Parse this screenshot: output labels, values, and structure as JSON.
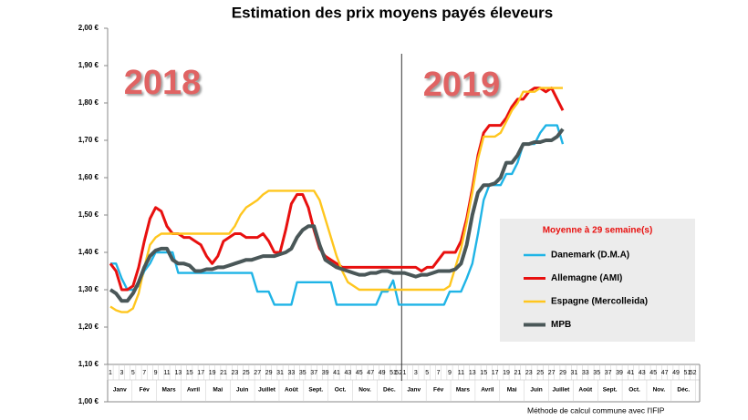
{
  "chart_data": {
    "type": "line",
    "title": "Estimation des prix moyens payés éleveurs",
    "annotations": [
      "2018",
      "2019"
    ],
    "legend_title": "Moyenne à  29 semaine(s)",
    "legend_position": "lower right",
    "footnote": "Méthode de calcul commune avec l'IFIP",
    "month_labels": [
      "Janv",
      "Fév",
      "Mars",
      "Avril",
      "Mai",
      "Juin",
      "Juillet",
      "Août",
      "Sept.",
      "Oct.",
      "Nov.",
      "Déc.",
      "Janv",
      "Fév",
      "Mars",
      "Avril",
      "Mai",
      "Juin",
      "Juillet",
      "Août",
      "Sept.",
      "Oct.",
      "Nov.",
      "Déc."
    ],
    "categories": [
      "1",
      null,
      "3",
      null,
      "5",
      null,
      "7",
      null,
      "9",
      null,
      "11",
      null,
      "13",
      null,
      "15",
      null,
      "17",
      null,
      "19",
      null,
      "21",
      null,
      "23",
      null,
      "25",
      null,
      "27",
      null,
      "29",
      null,
      "31",
      null,
      "33",
      null,
      "35",
      null,
      "37",
      null,
      "39",
      null,
      "41",
      null,
      "43",
      null,
      "45",
      null,
      "47",
      null,
      "49",
      null,
      "51",
      "52",
      "1",
      null,
      "3",
      null,
      "5",
      null,
      "7",
      null,
      "9",
      null,
      "11",
      null,
      "13",
      null,
      "15",
      null,
      "17",
      null,
      "19",
      null,
      "21",
      null,
      "23",
      null,
      "25",
      null,
      "27",
      null,
      "29",
      null,
      "31",
      null,
      "33",
      null,
      "35",
      null,
      "37",
      null,
      "39",
      null,
      "41",
      null,
      "43",
      null,
      "45",
      null,
      "47",
      null,
      "49",
      null,
      "51",
      "52"
    ],
    "ylim": [
      1.0,
      2.0
    ],
    "yticks": [
      {
        "value": 1.0,
        "label": "1,00 €"
      },
      {
        "value": 1.1,
        "label": "1,10 €"
      },
      {
        "value": 1.2,
        "label": "1,20 €"
      },
      {
        "value": 1.3,
        "label": "1,30 €"
      },
      {
        "value": 1.4,
        "label": "1,40 €"
      },
      {
        "value": 1.5,
        "label": "1,50 €"
      },
      {
        "value": 1.6,
        "label": "1,60 €"
      },
      {
        "value": 1.7,
        "label": "1,70 €"
      },
      {
        "value": 1.8,
        "label": "1,80 €"
      },
      {
        "value": 1.9,
        "label": "1,90 €"
      },
      {
        "value": 2.0,
        "label": "2,00 €"
      }
    ],
    "grid": false,
    "series": [
      {
        "name": "Danemark (D.M.A)",
        "color": "#1fb4e6",
        "values": [
          1.37,
          1.37,
          1.33,
          1.3,
          1.3,
          1.31,
          1.35,
          1.37,
          1.4,
          1.4,
          1.4,
          1.4,
          1.345,
          1.345,
          1.345,
          1.345,
          1.345,
          1.345,
          1.345,
          1.345,
          1.345,
          1.345,
          1.345,
          1.345,
          1.345,
          1.345,
          1.295,
          1.295,
          1.295,
          1.26,
          1.26,
          1.26,
          1.26,
          1.32,
          1.32,
          1.32,
          1.32,
          1.32,
          1.32,
          1.32,
          1.26,
          1.26,
          1.26,
          1.26,
          1.26,
          1.26,
          1.26,
          1.26,
          1.295,
          1.295,
          1.325,
          1.26,
          1.26,
          1.26,
          1.26,
          1.26,
          1.26,
          1.26,
          1.26,
          1.26,
          1.295,
          1.295,
          1.295,
          1.33,
          1.37,
          1.45,
          1.54,
          1.58,
          1.58,
          1.58,
          1.61,
          1.61,
          1.64,
          1.69,
          1.69,
          1.69,
          1.72,
          1.74,
          1.74,
          1.74,
          1.69,
          null,
          null,
          null,
          null,
          null,
          null,
          null,
          null,
          null,
          null,
          null,
          null,
          null,
          null,
          null,
          null,
          null,
          null,
          null,
          null,
          null,
          null,
          null
        ]
      },
      {
        "name": "Allemagne (AMI)",
        "color": "#e8100f",
        "values": [
          1.37,
          1.35,
          1.3,
          1.3,
          1.31,
          1.36,
          1.43,
          1.49,
          1.52,
          1.51,
          1.47,
          1.45,
          1.45,
          1.44,
          1.44,
          1.43,
          1.42,
          1.39,
          1.37,
          1.39,
          1.43,
          1.44,
          1.45,
          1.45,
          1.44,
          1.44,
          1.44,
          1.45,
          1.43,
          1.4,
          1.4,
          1.46,
          1.53,
          1.555,
          1.555,
          1.52,
          1.46,
          1.41,
          1.39,
          1.38,
          1.37,
          1.36,
          1.36,
          1.36,
          1.36,
          1.36,
          1.36,
          1.36,
          1.36,
          1.36,
          1.36,
          1.36,
          1.36,
          1.36,
          1.36,
          1.35,
          1.36,
          1.36,
          1.38,
          1.4,
          1.4,
          1.4,
          1.43,
          1.49,
          1.57,
          1.66,
          1.72,
          1.74,
          1.74,
          1.74,
          1.76,
          1.79,
          1.81,
          1.81,
          1.83,
          1.84,
          1.84,
          1.83,
          1.84,
          1.81,
          1.78,
          null,
          null,
          null,
          null,
          null,
          null,
          null,
          null,
          null,
          null,
          null,
          null,
          null,
          null,
          null,
          null,
          null,
          null,
          null,
          null,
          null,
          null,
          null
        ]
      },
      {
        "name": "Espagne (Mercolleida)",
        "color": "#ffc61e",
        "values": [
          1.255,
          1.245,
          1.24,
          1.24,
          1.25,
          1.29,
          1.36,
          1.42,
          1.44,
          1.45,
          1.45,
          1.45,
          1.45,
          1.45,
          1.45,
          1.45,
          1.45,
          1.45,
          1.45,
          1.45,
          1.45,
          1.45,
          1.47,
          1.5,
          1.52,
          1.53,
          1.54,
          1.555,
          1.565,
          1.565,
          1.565,
          1.565,
          1.565,
          1.565,
          1.565,
          1.565,
          1.565,
          1.54,
          1.49,
          1.44,
          1.39,
          1.35,
          1.32,
          1.31,
          1.3,
          1.3,
          1.3,
          1.3,
          1.3,
          1.3,
          1.3,
          1.3,
          1.3,
          1.3,
          1.3,
          1.3,
          1.3,
          1.3,
          1.3,
          1.3,
          1.31,
          1.36,
          1.41,
          1.48,
          1.56,
          1.65,
          1.71,
          1.71,
          1.71,
          1.72,
          1.75,
          1.78,
          1.8,
          1.83,
          1.83,
          1.83,
          1.84,
          1.84,
          1.84,
          1.84,
          1.84,
          null,
          null,
          null,
          null,
          null,
          null,
          null,
          null,
          null,
          null,
          null,
          null,
          null,
          null,
          null,
          null,
          null,
          null,
          null,
          null,
          null,
          null,
          null
        ]
      },
      {
        "name": "MPB",
        "color": "#4a5758",
        "values": [
          1.3,
          1.29,
          1.27,
          1.27,
          1.29,
          1.32,
          1.36,
          1.39,
          1.405,
          1.41,
          1.41,
          1.38,
          1.37,
          1.37,
          1.365,
          1.35,
          1.35,
          1.355,
          1.355,
          1.36,
          1.36,
          1.365,
          1.37,
          1.375,
          1.38,
          1.38,
          1.385,
          1.39,
          1.39,
          1.39,
          1.395,
          1.4,
          1.41,
          1.44,
          1.46,
          1.47,
          1.47,
          1.42,
          1.38,
          1.37,
          1.36,
          1.355,
          1.35,
          1.345,
          1.34,
          1.34,
          1.345,
          1.345,
          1.35,
          1.35,
          1.345,
          1.345,
          1.345,
          1.34,
          1.335,
          1.34,
          1.34,
          1.345,
          1.35,
          1.35,
          1.35,
          1.355,
          1.37,
          1.42,
          1.5,
          1.56,
          1.58,
          1.58,
          1.585,
          1.6,
          1.64,
          1.64,
          1.66,
          1.69,
          1.69,
          1.695,
          1.695,
          1.7,
          1.7,
          1.71,
          1.73,
          null,
          null,
          null,
          null,
          null,
          null,
          null,
          null,
          null,
          null,
          null,
          null,
          null,
          null,
          null,
          null,
          null,
          null,
          null,
          null,
          null,
          null,
          null
        ]
      }
    ]
  }
}
